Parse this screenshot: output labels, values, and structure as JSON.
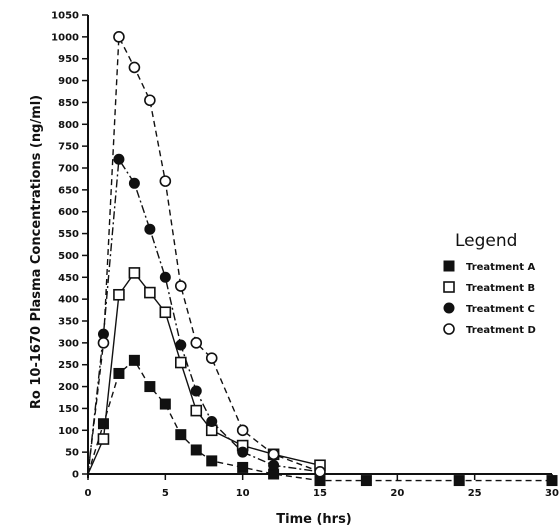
{
  "chart_data": {
    "type": "line",
    "title": "",
    "xlabel": "Time (hrs)",
    "ylabel": "Ro 10-1670 Plasma Concentrations (ng/ml)",
    "xlim": [
      0,
      30
    ],
    "ylim": [
      0,
      1050
    ],
    "xticks": [
      0,
      5,
      10,
      15,
      20,
      25,
      30
    ],
    "xtick_labels": [
      "0",
      "5",
      "10",
      "15",
      "20",
      "25",
      "30"
    ],
    "yticks": [
      0,
      50,
      100,
      150,
      200,
      250,
      300,
      350,
      400,
      450,
      500,
      550,
      600,
      650,
      700,
      750,
      800,
      850,
      900,
      950,
      1000,
      1050
    ],
    "ytick_labels": [
      "0",
      "50",
      "100",
      "150",
      "200",
      "250",
      "300",
      "350",
      "400",
      "450",
      "500",
      "550",
      "600",
      "650",
      "700",
      "750",
      "800",
      "850",
      "900",
      "950",
      "1000",
      "1050"
    ],
    "grid": false,
    "legend": {
      "title": "Legend",
      "placement": "right",
      "entries": [
        "Treatment A",
        "Treatment B",
        "Treatment C",
        "Treatment D"
      ]
    },
    "series": [
      {
        "name": "Treatment A",
        "marker": "filled-square",
        "line": "dashed",
        "x": [
          0,
          1,
          2,
          3,
          4,
          5,
          6,
          7,
          8,
          10,
          12,
          15,
          18,
          24,
          30
        ],
        "y": [
          0,
          115,
          230,
          260,
          200,
          160,
          90,
          55,
          30,
          15,
          0,
          -15,
          -15,
          -15,
          -15
        ]
      },
      {
        "name": "Treatment B",
        "marker": "open-square",
        "line": "solid",
        "x": [
          0,
          1,
          2,
          3,
          4,
          5,
          6,
          7,
          8,
          10,
          12,
          15
        ],
        "y": [
          0,
          80,
          410,
          460,
          415,
          370,
          255,
          145,
          100,
          65,
          45,
          20
        ]
      },
      {
        "name": "Treatment C",
        "marker": "filled-circle",
        "line": "dash-dot",
        "x": [
          0,
          1,
          2,
          3,
          4,
          5,
          6,
          7,
          8,
          10,
          12,
          15
        ],
        "y": [
          0,
          320,
          720,
          665,
          560,
          450,
          295,
          190,
          120,
          50,
          20,
          5
        ]
      },
      {
        "name": "Treatment D",
        "marker": "open-circle",
        "line": "dashed",
        "x": [
          0,
          1,
          2,
          3,
          4,
          5,
          6,
          7,
          8,
          10,
          12,
          15
        ],
        "y": [
          0,
          300,
          1000,
          930,
          855,
          670,
          430,
          300,
          265,
          100,
          45,
          5
        ]
      }
    ]
  }
}
